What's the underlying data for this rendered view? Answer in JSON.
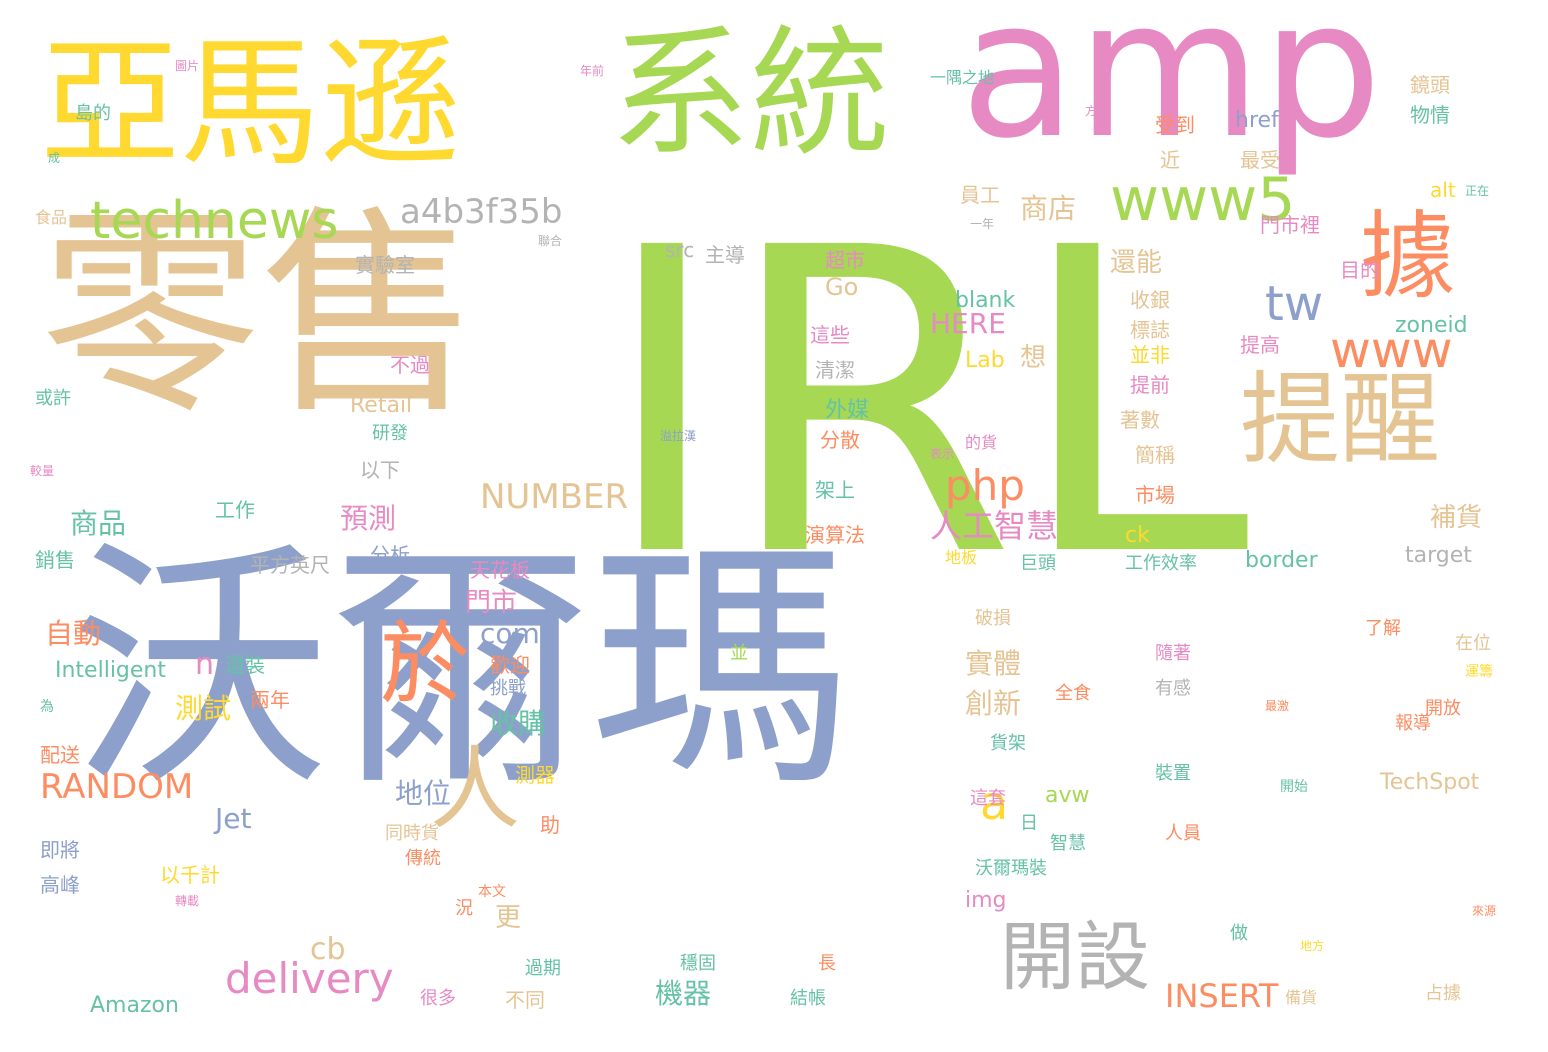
{
  "palette": {
    "blue": "#8da0cb",
    "green": "#a6d854",
    "tan": "#e5c494",
    "yellow": "#ffd92f",
    "pink": "#e78ac3",
    "orange": "#fc8d62",
    "teal": "#66c2a5",
    "gray": "#b3b3b3"
  },
  "words": [
    {
      "id": "irl",
      "text": "IRL",
      "color": "green",
      "size": 420
    },
    {
      "id": "wal",
      "text": "沃爾瑪",
      "color": "blue",
      "size": 260
    },
    {
      "id": "ling",
      "text": "零售",
      "color": "tan",
      "size": 220
    },
    {
      "id": "amp",
      "text": "amp",
      "color": "pink",
      "size": 190
    },
    {
      "id": "xitong",
      "text": "系統",
      "color": "green",
      "size": 140
    },
    {
      "id": "yama",
      "text": "亞馬遜",
      "color": "yellow",
      "size": 140
    },
    {
      "id": "tixing",
      "text": "提醒",
      "color": "tan",
      "size": 100
    },
    {
      "id": "ju",
      "text": "據",
      "color": "orange",
      "size": 95
    },
    {
      "id": "yu",
      "text": "於",
      "color": "orange",
      "size": 90
    },
    {
      "id": "ren",
      "text": "人",
      "color": "tan",
      "size": 90
    },
    {
      "id": "kaishe",
      "text": "開設",
      "color": "gray",
      "size": 75
    },
    {
      "id": "www5",
      "text": "www5",
      "color": "green",
      "size": 60
    },
    {
      "id": "technews",
      "text": "technews",
      "color": "green",
      "size": 52
    },
    {
      "id": "www",
      "text": "www",
      "color": "orange",
      "size": 50
    },
    {
      "id": "tw",
      "text": "tw",
      "color": "blue",
      "size": 48
    },
    {
      "id": "a",
      "text": "a",
      "color": "yellow",
      "size": 46
    },
    {
      "id": "php",
      "text": "php",
      "color": "orange",
      "size": 42
    },
    {
      "id": "delivery",
      "text": "delivery",
      "color": "pink",
      "size": 42
    },
    {
      "id": "a4b",
      "text": "a4b3f35b",
      "color": "gray",
      "size": 34
    },
    {
      "id": "number",
      "text": "NUMBER",
      "color": "tan",
      "size": 34
    },
    {
      "id": "random",
      "text": "RANDOM",
      "color": "orange",
      "size": 34
    },
    {
      "id": "rengong",
      "text": "人工智慧",
      "color": "pink",
      "size": 32
    },
    {
      "id": "insert",
      "text": "INSERT",
      "color": "orange",
      "size": 32
    },
    {
      "id": "cb",
      "text": "cb",
      "color": "tan",
      "size": 30
    },
    {
      "id": "n",
      "text": "n",
      "color": "pink",
      "size": 30
    },
    {
      "id": "here",
      "text": "HERE",
      "color": "pink",
      "size": 28
    },
    {
      "id": "com",
      "text": "com",
      "color": "blue",
      "size": 28
    },
    {
      "id": "jet",
      "text": "Jet",
      "color": "blue",
      "size": 28
    },
    {
      "id": "zidong",
      "text": "自動",
      "color": "orange",
      "size": 28
    },
    {
      "id": "ceshi",
      "text": "測試",
      "color": "yellow",
      "size": 28
    },
    {
      "id": "diwei",
      "text": "地位",
      "color": "blue",
      "size": 28
    },
    {
      "id": "shouguo",
      "text": "收購",
      "color": "teal",
      "size": 28
    },
    {
      "id": "shangpin",
      "text": "商品",
      "color": "teal",
      "size": 28
    },
    {
      "id": "yuce",
      "text": "預測",
      "color": "pink",
      "size": 28
    },
    {
      "id": "menshi",
      "text": "門市",
      "color": "pink",
      "size": 26
    },
    {
      "id": "jiqi",
      "text": "機器",
      "color": "teal",
      "size": 28
    },
    {
      "id": "chuangxin",
      "text": "創新",
      "color": "tan",
      "size": 28
    },
    {
      "id": "shiti",
      "text": "實體",
      "color": "tan",
      "size": 28
    },
    {
      "id": "shangdian",
      "text": "商店",
      "color": "tan",
      "size": 28
    },
    {
      "id": "xiang",
      "text": "想",
      "color": "tan",
      "size": 26
    },
    {
      "id": "geng",
      "text": "更",
      "color": "tan",
      "size": 26
    },
    {
      "id": "buhuo",
      "text": "補貨",
      "color": "tan",
      "size": 26
    },
    {
      "id": "haineng",
      "text": "還能",
      "color": "tan",
      "size": 26
    },
    {
      "id": "go",
      "text": "Go",
      "color": "tan",
      "size": 24
    },
    {
      "id": "blank",
      "text": "blank",
      "color": "teal",
      "size": 22
    },
    {
      "id": "lab",
      "text": "Lab",
      "color": "yellow",
      "size": 22
    },
    {
      "id": "href",
      "text": "href",
      "color": "blue",
      "size": 22
    },
    {
      "id": "zoneid",
      "text": "zoneid",
      "color": "teal",
      "size": 22
    },
    {
      "id": "retail",
      "text": "Retail",
      "color": "tan",
      "size": 22
    },
    {
      "id": "intelligent",
      "text": "Intelligent",
      "color": "teal",
      "size": 22
    },
    {
      "id": "amazon",
      "text": "Amazon",
      "color": "teal",
      "size": 22
    },
    {
      "id": "border",
      "text": "border",
      "color": "teal",
      "size": 22
    },
    {
      "id": "target",
      "text": "target",
      "color": "gray",
      "size": 22
    },
    {
      "id": "techspot",
      "text": "TechSpot",
      "color": "tan",
      "size": 22
    },
    {
      "id": "avw",
      "text": "avw",
      "color": "green",
      "size": 22
    },
    {
      "id": "img",
      "text": "img",
      "color": "pink",
      "size": 22
    },
    {
      "id": "ck",
      "text": "ck",
      "color": "yellow",
      "size": 22
    },
    {
      "id": "src",
      "text": "src",
      "color": "gray",
      "size": 20
    },
    {
      "id": "alt",
      "text": "alt",
      "color": "yellow",
      "size": 20
    },
    {
      "id": "waimei",
      "text": "外媒",
      "color": "teal",
      "size": 22
    },
    {
      "id": "fensan",
      "text": "分散",
      "color": "orange",
      "size": 20
    },
    {
      "id": "jiashang",
      "text": "架上",
      "color": "teal",
      "size": 20
    },
    {
      "id": "yansuanfa",
      "text": "演算法",
      "color": "orange",
      "size": 20
    },
    {
      "id": "shichang",
      "text": "市場",
      "color": "orange",
      "size": 20
    },
    {
      "id": "jiancheng",
      "text": "簡稱",
      "color": "tan",
      "size": 20
    },
    {
      "id": "zhushu",
      "text": "著數",
      "color": "tan",
      "size": 20
    },
    {
      "id": "tiqian",
      "text": "提前",
      "color": "pink",
      "size": 20
    },
    {
      "id": "bingfei",
      "text": "並非",
      "color": "yellow",
      "size": 20
    },
    {
      "id": "biaozhi",
      "text": "標誌",
      "color": "tan",
      "size": 20
    },
    {
      "id": "shouju",
      "text": "收銀",
      "color": "tan",
      "size": 20
    },
    {
      "id": "tigao",
      "text": "提高",
      "color": "pink",
      "size": 20
    },
    {
      "id": "mudi",
      "text": "目的",
      "color": "pink",
      "size": 20
    },
    {
      "id": "menshili",
      "text": "門市裡",
      "color": "pink",
      "size": 20
    },
    {
      "id": "zuishou",
      "text": "最受",
      "color": "tan",
      "size": 20
    },
    {
      "id": "jin",
      "text": "近",
      "color": "tan",
      "size": 20
    },
    {
      "id": "shoudao",
      "text": "受到",
      "color": "orange",
      "size": 20
    },
    {
      "id": "jingtou",
      "text": "鏡頭",
      "color": "tan",
      "size": 20
    },
    {
      "id": "wuqing",
      "text": "物情",
      "color": "teal",
      "size": 20
    },
    {
      "id": "yuangong",
      "text": "員工",
      "color": "tan",
      "size": 20
    },
    {
      "id": "chaoshi",
      "text": "超市",
      "color": "pink",
      "size": 20
    },
    {
      "id": "zhexie",
      "text": "這些",
      "color": "pink",
      "size": 20
    },
    {
      "id": "qingjie",
      "text": "清潔",
      "color": "gray",
      "size": 20
    },
    {
      "id": "zhudao",
      "text": "主導",
      "color": "gray",
      "size": 20
    },
    {
      "id": "shiyanshi",
      "text": "實驗室",
      "color": "gray",
      "size": 20
    },
    {
      "id": "buguo",
      "text": "不過",
      "color": "pink",
      "size": 20
    },
    {
      "id": "yanfa",
      "text": "研發",
      "color": "teal",
      "size": 18
    },
    {
      "id": "huoxu",
      "text": "或許",
      "color": "teal",
      "size": 18
    },
    {
      "id": "yixia",
      "text": "以下",
      "color": "gray",
      "size": 20
    },
    {
      "id": "gongzuo",
      "text": "工作",
      "color": "teal",
      "size": 20
    },
    {
      "id": "fenxi",
      "text": "分析",
      "color": "blue",
      "size": 20
    },
    {
      "id": "pingfang",
      "text": "平方英尺",
      "color": "gray",
      "size": 20
    },
    {
      "id": "xiaoshou",
      "text": "銷售",
      "color": "teal",
      "size": 20
    },
    {
      "id": "tianhuaban",
      "text": "天花板",
      "color": "pink",
      "size": 20
    },
    {
      "id": "huanzhuang",
      "text": "還裝",
      "color": "teal",
      "size": 20
    },
    {
      "id": "liangnian",
      "text": "兩年",
      "color": "orange",
      "size": 20
    },
    {
      "id": "huanying",
      "text": "歡迎",
      "color": "orange",
      "size": 20
    },
    {
      "id": "tiaozhan",
      "text": "挑戰",
      "color": "blue",
      "size": 18
    },
    {
      "id": "ceqi",
      "text": "測器",
      "color": "yellow",
      "size": 20
    },
    {
      "id": "zhu",
      "text": "助",
      "color": "orange",
      "size": 20
    },
    {
      "id": "tongshi",
      "text": "同時貨",
      "color": "tan",
      "size": 18
    },
    {
      "id": "chuantong",
      "text": "傳統",
      "color": "orange",
      "size": 18
    },
    {
      "id": "benwen",
      "text": "本文",
      "color": "orange",
      "size": 14
    },
    {
      "id": "kuang",
      "text": "況",
      "color": "orange",
      "size": 18
    },
    {
      "id": "yiqianji",
      "text": "以千計",
      "color": "yellow",
      "size": 20
    },
    {
      "id": "jijiang",
      "text": "即將",
      "color": "blue",
      "size": 20
    },
    {
      "id": "gaofeng",
      "text": "高峰",
      "color": "blue",
      "size": 20
    },
    {
      "id": "peisong",
      "text": "配送",
      "color": "orange",
      "size": 20
    },
    {
      "id": "guoqi",
      "text": "過期",
      "color": "teal",
      "size": 18
    },
    {
      "id": "butong",
      "text": "不同",
      "color": "tan",
      "size": 20
    },
    {
      "id": "henduo",
      "text": "很多",
      "color": "pink",
      "size": 18
    },
    {
      "id": "wengu",
      "text": "穩固",
      "color": "teal",
      "size": 18
    },
    {
      "id": "jiezhang",
      "text": "結帳",
      "color": "teal",
      "size": 18
    },
    {
      "id": "zhang",
      "text": "長",
      "color": "orange",
      "size": 18
    },
    {
      "id": "gongzuoxl",
      "text": "工作效率",
      "color": "teal",
      "size": 18
    },
    {
      "id": "jutou",
      "text": "巨頭",
      "color": "teal",
      "size": 18
    },
    {
      "id": "diban",
      "text": "地板",
      "color": "yellow",
      "size": 16
    },
    {
      "id": "pojun",
      "text": "破損",
      "color": "tan",
      "size": 18
    },
    {
      "id": "bing",
      "text": "並",
      "color": "green",
      "size": 18
    },
    {
      "id": "quanshi",
      "text": "全食",
      "color": "orange",
      "size": 18
    },
    {
      "id": "huojia",
      "text": "貨架",
      "color": "teal",
      "size": 18
    },
    {
      "id": "zhetao",
      "text": "這套",
      "color": "pink",
      "size": 18
    },
    {
      "id": "ri",
      "text": "日",
      "color": "teal",
      "size": 18
    },
    {
      "id": "zhihui",
      "text": "智慧",
      "color": "teal",
      "size": 18
    },
    {
      "id": "woerzhuang",
      "text": "沃爾瑪裝",
      "color": "teal",
      "size": 18
    },
    {
      "id": "yougan",
      "text": "有感",
      "color": "gray",
      "size": 18
    },
    {
      "id": "suizhe",
      "text": "隨著",
      "color": "pink",
      "size": 18
    },
    {
      "id": "zhuangzhi",
      "text": "裝置",
      "color": "teal",
      "size": 18
    },
    {
      "id": "renyuan",
      "text": "人員",
      "color": "orange",
      "size": 18
    },
    {
      "id": "liaojie",
      "text": "了解",
      "color": "orange",
      "size": 18
    },
    {
      "id": "baodao",
      "text": "報導",
      "color": "orange",
      "size": 18
    },
    {
      "id": "kaifang",
      "text": "開放",
      "color": "orange",
      "size": 18
    },
    {
      "id": "zaiwei",
      "text": "在位",
      "color": "tan",
      "size": 18
    },
    {
      "id": "yunlian",
      "text": "運籌",
      "color": "yellow",
      "size": 14
    },
    {
      "id": "kaishi",
      "text": "開始",
      "color": "teal",
      "size": 14
    },
    {
      "id": "zuiji",
      "text": "最激",
      "color": "orange",
      "size": 12
    },
    {
      "id": "zhanju",
      "text": "占據",
      "color": "tan",
      "size": 18
    },
    {
      "id": "beihuo",
      "text": "備貨",
      "color": "tan",
      "size": 16
    },
    {
      "id": "zuo",
      "text": "做",
      "color": "teal",
      "size": 18
    },
    {
      "id": "laoyuan",
      "text": "來源",
      "color": "orange",
      "size": 12
    },
    {
      "id": "difang",
      "text": "地方",
      "color": "yellow",
      "size": 12
    },
    {
      "id": "yiyu",
      "text": "一隅之地",
      "color": "teal",
      "size": 16
    },
    {
      "id": "daode",
      "text": "島的",
      "color": "teal",
      "size": 18
    },
    {
      "id": "shipin",
      "text": "食品",
      "color": "tan",
      "size": 16
    },
    {
      "id": "jiaoliang",
      "text": "較量",
      "color": "pink",
      "size": 12
    },
    {
      "id": "wei",
      "text": "為",
      "color": "teal",
      "size": 14
    },
    {
      "id": "cheng",
      "text": "成",
      "color": "teal",
      "size": 12
    },
    {
      "id": "tupian",
      "text": "圖片",
      "color": "pink",
      "size": 12
    },
    {
      "id": "niandian",
      "text": "年前",
      "color": "pink",
      "size": 12
    },
    {
      "id": "fangshi",
      "text": "方式",
      "color": "pink",
      "size": 12
    },
    {
      "id": "yinian",
      "text": "一年",
      "color": "gray",
      "size": 12
    },
    {
      "id": "zhengzai",
      "text": "正在",
      "color": "teal",
      "size": 12
    },
    {
      "id": "lianhe",
      "text": "聯合",
      "color": "gray",
      "size": 12
    },
    {
      "id": "zhuanzai",
      "text": "轉載",
      "color": "pink",
      "size": 12
    },
    {
      "id": "biaoshi",
      "text": "表示",
      "color": "pink",
      "size": 12
    },
    {
      "id": "dehuo",
      "text": "的貨",
      "color": "pink",
      "size": 16
    },
    {
      "id": "xiehan",
      "text": "溢拉漢",
      "color": "blue",
      "size": 12
    }
  ]
}
